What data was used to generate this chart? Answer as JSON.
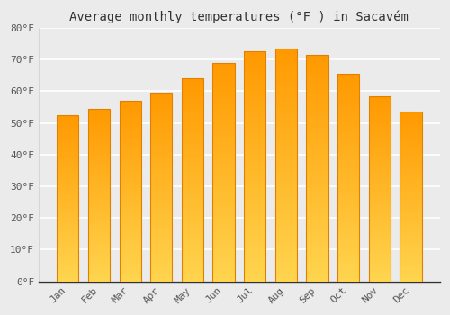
{
  "title": "Average monthly temperatures (°F ) in Sacavém",
  "months": [
    "Jan",
    "Feb",
    "Mar",
    "Apr",
    "May",
    "Jun",
    "Jul",
    "Aug",
    "Sep",
    "Oct",
    "Nov",
    "Dec"
  ],
  "values": [
    52.5,
    54.5,
    57.0,
    59.5,
    64.0,
    69.0,
    72.5,
    73.5,
    71.5,
    65.5,
    58.5,
    53.5
  ],
  "bar_color": "#FFA726",
  "bar_edge_color": "#E08000",
  "bar_bottom_color": "#FFD54F",
  "ylim": [
    0,
    80
  ],
  "yticks": [
    0,
    10,
    20,
    30,
    40,
    50,
    60,
    70,
    80
  ],
  "ytick_labels": [
    "0°F",
    "10°F",
    "20°F",
    "30°F",
    "40°F",
    "50°F",
    "60°F",
    "70°F",
    "80°F"
  ],
  "background_color": "#ebebeb",
  "plot_bg_color": "#ebebeb",
  "grid_color": "#ffffff",
  "title_fontsize": 10,
  "tick_fontsize": 8,
  "title_color": "#333333",
  "tick_color": "#555555"
}
